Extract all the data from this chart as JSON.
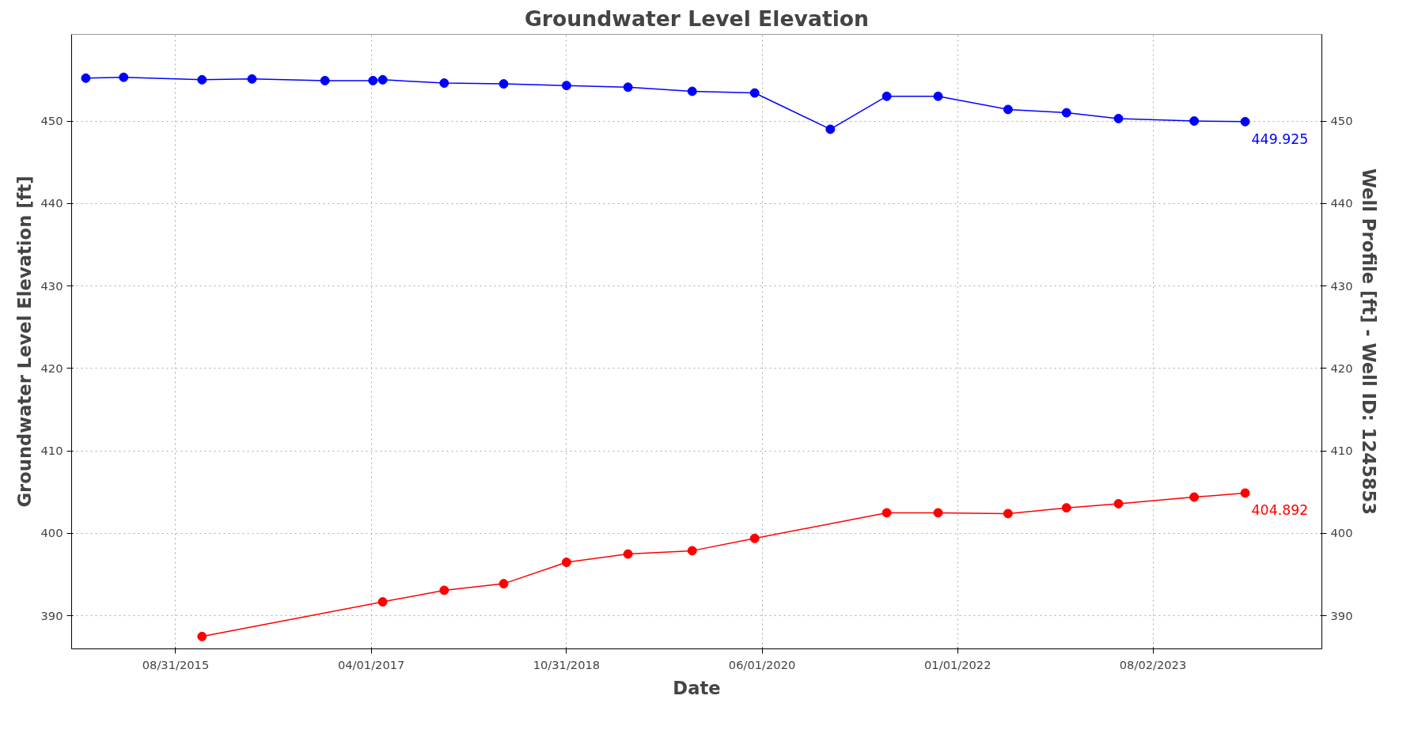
{
  "chart_data": {
    "type": "line",
    "title": "Groundwater Level Elevation",
    "xlabel": "Date",
    "ylabel": "Groundwater Level Elevation [ft]",
    "y2label": "Well Profile [ft] - Well ID: 1245853",
    "xlim": [
      "2014-10-27",
      "2024-12-14"
    ],
    "xticks": [
      {
        "value": "2015-08-31",
        "label": "08/31/2015"
      },
      {
        "value": "2017-04-01",
        "label": "04/01/2017"
      },
      {
        "value": "2018-10-31",
        "label": "10/31/2018"
      },
      {
        "value": "2020-06-01",
        "label": "06/01/2020"
      },
      {
        "value": "2022-01-01",
        "label": "01/01/2022"
      },
      {
        "value": "2023-08-02",
        "label": "08/02/2023"
      }
    ],
    "ylim": [
      386,
      460.5
    ],
    "yticks": [
      390,
      400,
      410,
      420,
      430,
      440,
      450
    ],
    "y2lim": [
      386,
      460.5
    ],
    "y2ticks": [
      390,
      400,
      410,
      420,
      430,
      440,
      450
    ],
    "grid": true,
    "marker": "circle",
    "line_style": "solid",
    "series": [
      {
        "color": "#0000ff",
        "x": [
          "2014-12-08",
          "2015-03-30",
          "2015-11-17",
          "2016-04-13",
          "2016-11-15",
          "2017-04-06",
          "2017-05-05",
          "2017-11-03",
          "2018-04-28",
          "2018-10-31",
          "2019-05-01",
          "2019-11-07",
          "2020-05-10",
          "2020-12-20",
          "2021-06-05",
          "2021-11-04",
          "2022-05-30",
          "2022-11-19",
          "2023-04-22",
          "2023-12-02",
          "2024-05-01"
        ],
        "values": [
          455.2,
          455.3,
          455.0,
          455.1,
          454.9,
          454.9,
          455.0,
          454.6,
          454.5,
          454.3,
          454.1,
          453.6,
          453.4,
          449.0,
          453.0,
          453.0,
          451.4,
          451.0,
          450.3,
          450.0,
          449.925
        ]
      },
      {
        "color": "#ff0000",
        "x": [
          "2015-11-17",
          "2017-05-05",
          "2017-11-03",
          "2018-04-28",
          "2018-10-31",
          "2019-05-01",
          "2019-11-07",
          "2020-05-10",
          "2021-06-05",
          "2021-11-04",
          "2022-05-30",
          "2022-11-19",
          "2023-04-22",
          "2023-12-02",
          "2024-05-01"
        ],
        "values": [
          387.5,
          391.7,
          393.1,
          393.9,
          396.5,
          397.5,
          397.9,
          399.4,
          402.5,
          402.5,
          402.4,
          403.1,
          403.6,
          404.4,
          404.892
        ]
      }
    ],
    "annotations": [
      {
        "text": "449.925",
        "x": "2024-05-01",
        "y": 449.925
      },
      {
        "text": "404.892",
        "x": "2024-05-01",
        "y": 404.892
      }
    ]
  }
}
